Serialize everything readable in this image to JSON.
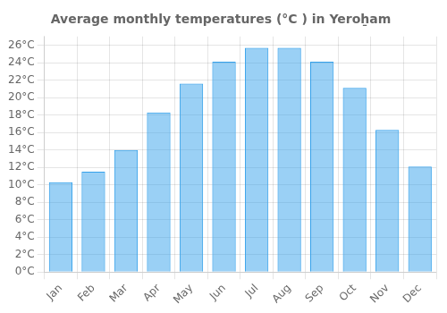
{
  "chart_data": {
    "type": "bar",
    "title": "Average monthly temperatures (°C ) in Yeroẖam",
    "categories": [
      "Jan",
      "Feb",
      "Mar",
      "Apr",
      "May",
      "Jun",
      "Jul",
      "Aug",
      "Sep",
      "Oct",
      "Nov",
      "Dec"
    ],
    "values": [
      10.3,
      11.5,
      14.0,
      18.3,
      21.6,
      24.1,
      25.7,
      25.7,
      24.1,
      21.1,
      16.3,
      12.1
    ],
    "ylim": [
      0,
      27
    ],
    "yticks": [
      {
        "value": 0,
        "label": "0°C"
      },
      {
        "value": 2,
        "label": "2°C"
      },
      {
        "value": 4,
        "label": "4°C"
      },
      {
        "value": 6,
        "label": "6°C"
      },
      {
        "value": 8,
        "label": "8°C"
      },
      {
        "value": 10,
        "label": "10°C"
      },
      {
        "value": 12,
        "label": "12°C"
      },
      {
        "value": 14,
        "label": "14°C"
      },
      {
        "value": 16,
        "label": "16°C"
      },
      {
        "value": 18,
        "label": "18°C"
      },
      {
        "value": 20,
        "label": "20°C"
      },
      {
        "value": 22,
        "label": "22°C"
      },
      {
        "value": 24,
        "label": "24°C"
      },
      {
        "value": 26,
        "label": "26°C"
      }
    ],
    "grid": true
  }
}
